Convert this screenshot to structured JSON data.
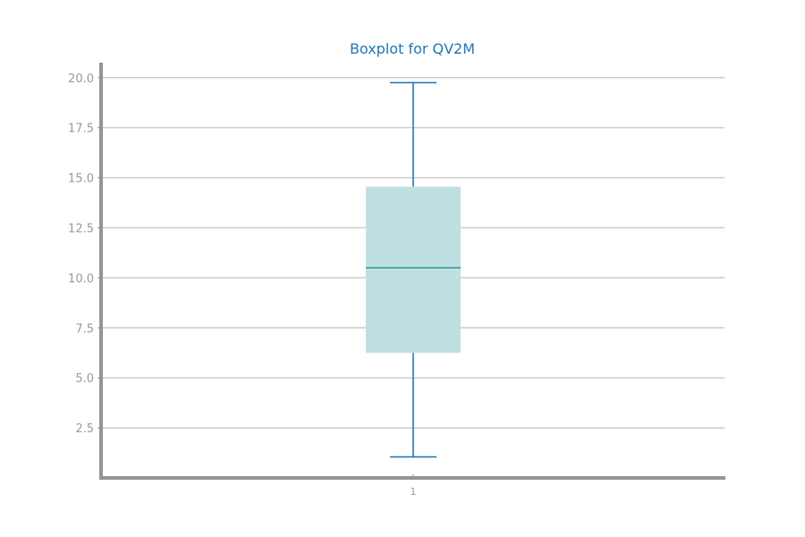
{
  "chart_data": {
    "type": "box",
    "title": "Boxplot for QV2M",
    "xlabel": "",
    "ylabel": "",
    "categories": [
      "1"
    ],
    "ylim": [
      0,
      20.75
    ],
    "yticks": [
      "2.5",
      "5.0",
      "7.5",
      "10.0",
      "12.5",
      "15.0",
      "17.5",
      "20.0"
    ],
    "grid": true,
    "boxes": [
      {
        "category": "1",
        "whisker_low": 1.05,
        "q1": 6.25,
        "median": 10.5,
        "q3": 14.55,
        "whisker_high": 19.75
      }
    ]
  },
  "colors": {
    "title": "#1f77b4",
    "box_fill": "#bfdfe2",
    "whisker": "#1a6fae",
    "median": "#1f9e89",
    "grid": "#cccccc",
    "axis": "#949494",
    "tick_text": "#999999"
  }
}
